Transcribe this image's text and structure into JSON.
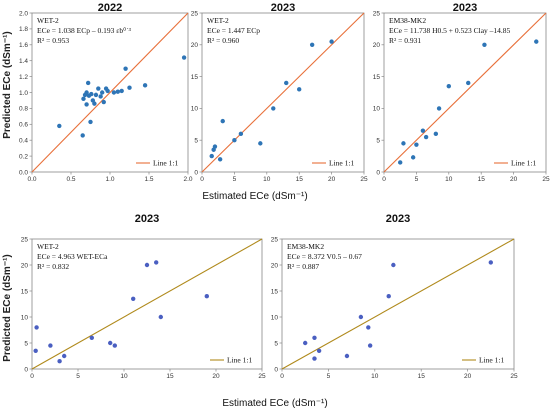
{
  "figure": {
    "y_label": "Predicted ECe (dSm⁻¹)",
    "x_label_top": "Estimated ECe (dSm⁻¹)",
    "x_label_bottom": "Estimated ECe (dSm⁻¹)"
  },
  "chart_data": [
    {
      "type": "scatter",
      "title": "2022",
      "annotation": [
        "WET-2",
        "ECe = 1.038 ECp – 0.193 εb⁰˙³",
        "R² = 0.953"
      ],
      "legend": "Line 1:1",
      "legend_position": "bottom-right",
      "line_color": "#e8703a",
      "point_color": "#2e75b6",
      "xlim": [
        0,
        2
      ],
      "ylim": [
        0,
        2
      ],
      "xticks": [
        "0.0",
        "0.5",
        "1.0",
        "1.5",
        "2.0"
      ],
      "yticks": [
        "0.0",
        "0.2",
        "0.4",
        "0.6",
        "0.8",
        "1.0",
        "1.2",
        "1.4",
        "1.6",
        "1.8",
        "2.0"
      ],
      "x": [
        0.35,
        0.65,
        0.66,
        0.68,
        0.7,
        0.7,
        0.72,
        0.73,
        0.75,
        0.76,
        0.78,
        0.8,
        0.82,
        0.85,
        0.88,
        0.9,
        0.92,
        0.95,
        0.97,
        1.05,
        1.1,
        1.15,
        1.2,
        1.25,
        1.45,
        1.95
      ],
      "y": [
        0.58,
        0.46,
        0.92,
        0.97,
        0.85,
        1.0,
        1.12,
        0.96,
        0.63,
        0.98,
        0.9,
        0.86,
        0.97,
        1.05,
        0.95,
        1.0,
        0.88,
        1.05,
        1.02,
        1.0,
        1.01,
        1.02,
        1.3,
        1.06,
        1.09,
        1.44
      ]
    },
    {
      "type": "scatter",
      "title": "2023",
      "annotation": [
        "WET-2",
        "ECe = 1.447 ECp",
        "R² = 0.960"
      ],
      "legend": "Line 1:1",
      "legend_position": "bottom-right",
      "line_color": "#e8703a",
      "point_color": "#2e75b6",
      "xlim": [
        0,
        25
      ],
      "ylim": [
        0,
        25
      ],
      "xticks": [
        "0",
        "5",
        "10",
        "15",
        "20",
        "25"
      ],
      "yticks": [
        "0",
        "5",
        "10",
        "15",
        "20",
        "25"
      ],
      "x": [
        1.5,
        1.8,
        2,
        2.8,
        3.2,
        5,
        6,
        9,
        11,
        13,
        15,
        17,
        20
      ],
      "y": [
        2.5,
        3.5,
        4,
        2,
        8,
        5,
        6,
        4.5,
        10,
        14,
        13,
        20,
        20.5
      ]
    },
    {
      "type": "scatter",
      "title": "2023",
      "annotation": [
        "EM38-MK2",
        "ECe = 11.738 H0.5 + 0.523 Clay –14.85",
        "R² = 0.931"
      ],
      "legend": "Line 1:1",
      "legend_position": "bottom-right",
      "line_color": "#e8703a",
      "point_color": "#2e75b6",
      "xlim": [
        0,
        25
      ],
      "ylim": [
        0,
        25
      ],
      "xticks": [
        "0",
        "5",
        "10",
        "15",
        "20",
        "25"
      ],
      "yticks": [
        "0",
        "5",
        "10",
        "15",
        "20",
        "25"
      ],
      "x": [
        2.5,
        3,
        4.5,
        5,
        6,
        6.5,
        8,
        8.5,
        10,
        13,
        15.5,
        23.5
      ],
      "y": [
        1.5,
        4.5,
        2.3,
        4.3,
        6.5,
        5.5,
        6,
        10,
        13.5,
        14,
        20,
        20.5
      ]
    },
    {
      "type": "scatter",
      "title": "2023",
      "annotation": [
        "WET-2",
        "ECe = 4.963 WET-ECa",
        "R² = 0.832"
      ],
      "legend": "Line 1:1",
      "legend_position": "bottom-right",
      "line_color": "#b08a1c",
      "point_color": "#4a5fc1",
      "xlim": [
        0,
        25
      ],
      "ylim": [
        0,
        25
      ],
      "xticks": [
        "0",
        "5",
        "10",
        "15",
        "20",
        "25"
      ],
      "yticks": [
        "0",
        "5",
        "10",
        "15",
        "20",
        "25"
      ],
      "x": [
        0.4,
        0.5,
        2,
        3,
        3.5,
        6.5,
        8.5,
        9,
        11,
        12.5,
        13.5,
        14,
        19
      ],
      "y": [
        3.5,
        8,
        4.5,
        1.5,
        2.5,
        6,
        5,
        4.5,
        13.5,
        20,
        20.5,
        10,
        14
      ]
    },
    {
      "type": "scatter",
      "title": "2023",
      "annotation": [
        "EM38-MK2",
        "ECe = 8.372 V0.5 – 0.67",
        "R² = 0.887"
      ],
      "legend": "Line 1:1",
      "legend_position": "bottom-right",
      "line_color": "#b08a1c",
      "point_color": "#4a5fc1",
      "xlim": [
        0,
        25
      ],
      "ylim": [
        0,
        25
      ],
      "xticks": [
        "0",
        "5",
        "10",
        "15",
        "20",
        "25"
      ],
      "yticks": [
        "0",
        "5",
        "10",
        "15",
        "20",
        "25"
      ],
      "x": [
        2.5,
        3.5,
        3.5,
        4,
        7,
        8.5,
        9.3,
        9.5,
        11.5,
        12,
        22.5
      ],
      "y": [
        5,
        6,
        2,
        3.5,
        2.5,
        10,
        8,
        4.5,
        14,
        20,
        20.5
      ]
    }
  ]
}
